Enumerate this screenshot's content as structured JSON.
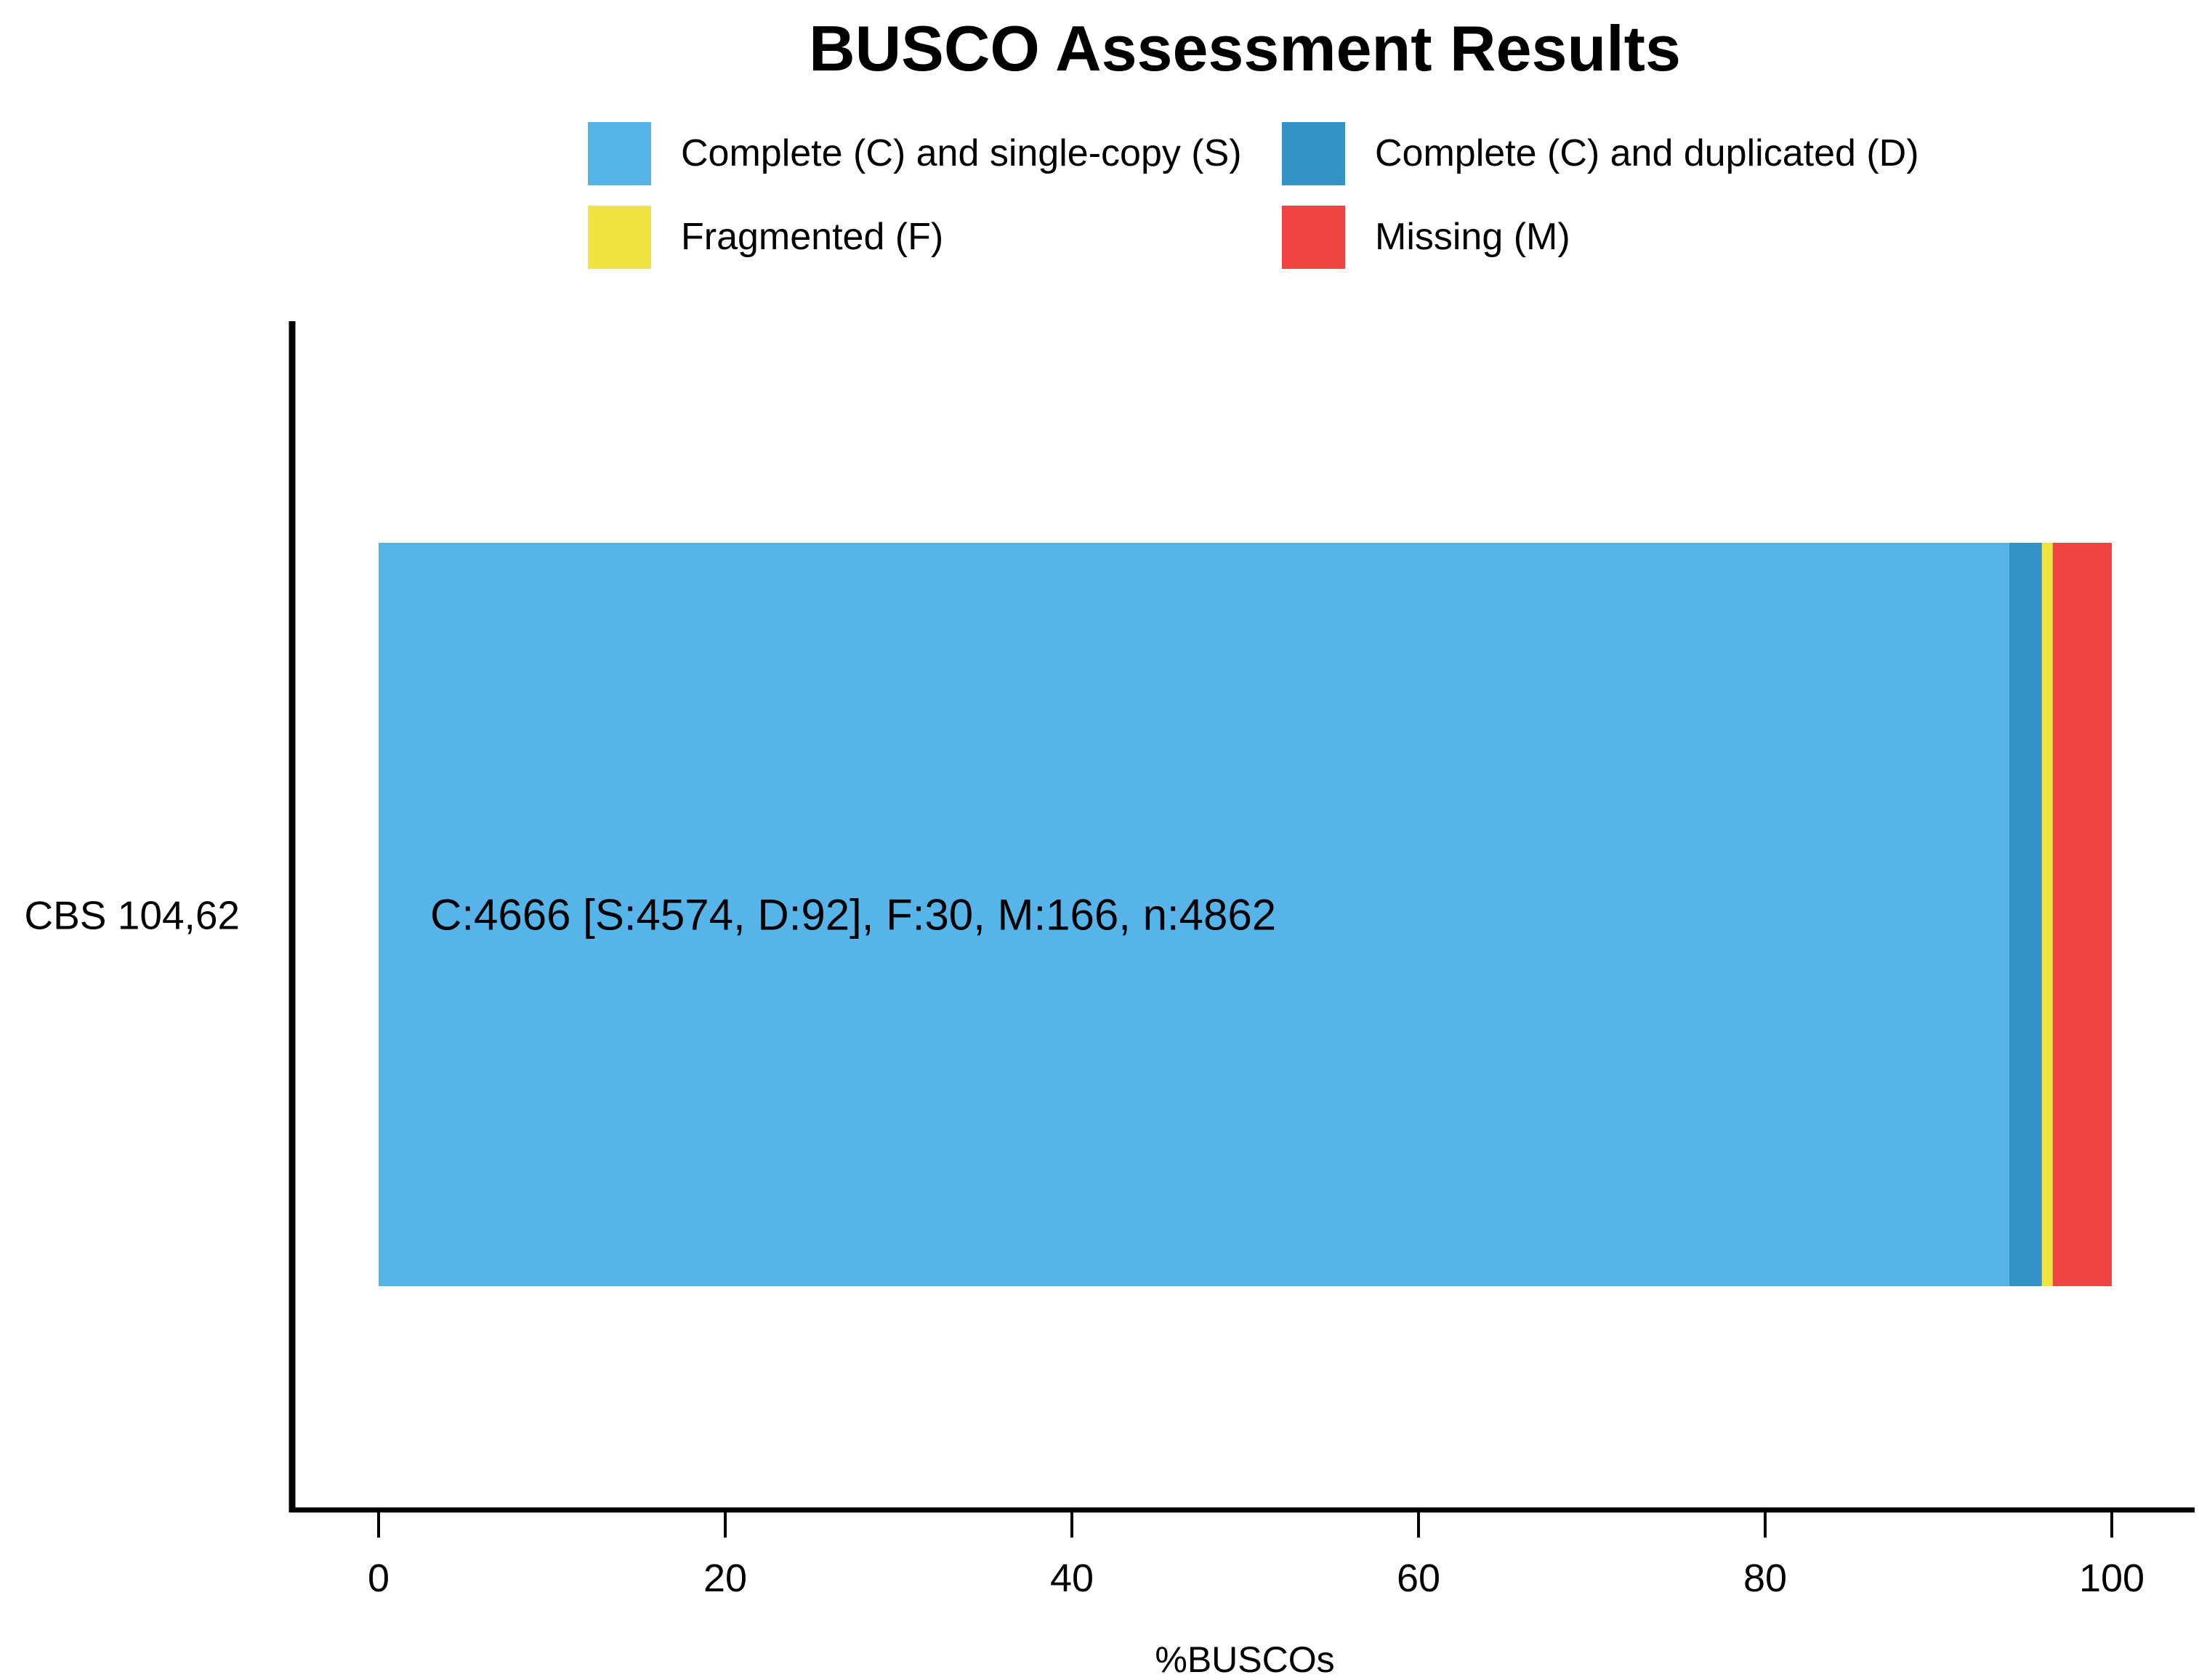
{
  "chart_data": {
    "type": "bar",
    "orientation": "horizontal",
    "stacked": true,
    "title": "BUSCO Assessment Results",
    "xlabel": "%BUSCOs",
    "ylabel": "",
    "xlim": [
      0,
      100
    ],
    "xticks": [
      0,
      20,
      40,
      60,
      80,
      100
    ],
    "grid": false,
    "legend_position": "top",
    "categories": [
      "CBS 104,62"
    ],
    "series": [
      {
        "name": "Complete (C) and single-copy (S)",
        "color": "#56b4e9",
        "values": [
          94.08
        ]
      },
      {
        "name": "Complete (C) and duplicated (D)",
        "color": "#3492c7",
        "values": [
          1.89
        ]
      },
      {
        "name": "Fragmented (F)",
        "color": "#f0e442",
        "values": [
          0.62
        ]
      },
      {
        "name": "Missing (M)",
        "color": "#f04442",
        "values": [
          3.41
        ]
      }
    ],
    "bar_labels": [
      "C:4666 [S:4574, D:92], F:30, M:166, n:4862"
    ]
  }
}
